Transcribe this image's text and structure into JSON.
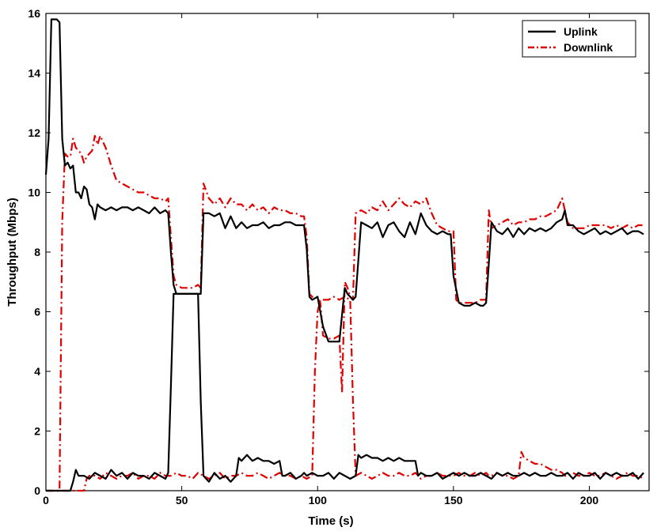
{
  "chart_data": {
    "type": "line",
    "xlabel": "Time (s)",
    "ylabel": "Throughput (Mbps)",
    "xlim": [
      0,
      222
    ],
    "ylim": [
      0,
      16
    ],
    "xticks": [
      0,
      50,
      100,
      150,
      200
    ],
    "yticks": [
      0,
      2,
      4,
      6,
      8,
      10,
      12,
      14,
      16
    ],
    "grid": false,
    "legend_position": "top-right",
    "colors": {
      "uplink": "#000000",
      "downlink": "#e00000"
    },
    "series": [
      {
        "name": "Uplink",
        "style": "solid",
        "flow": "primary",
        "x": [
          0,
          1,
          2,
          4,
          5,
          6,
          7,
          8,
          9,
          10,
          11,
          12,
          13,
          14,
          15,
          16,
          17,
          18,
          19,
          20,
          22,
          24,
          26,
          28,
          30,
          32,
          34,
          36,
          38,
          40,
          42,
          44,
          45,
          46,
          47,
          48,
          50,
          52,
          54,
          56,
          57,
          58,
          60,
          62,
          64,
          66,
          68,
          70,
          72,
          74,
          76,
          78,
          80,
          82,
          84,
          86,
          88,
          90,
          92,
          94,
          95,
          96,
          97,
          98,
          100,
          102,
          104,
          106,
          108,
          109,
          110,
          111,
          112,
          113,
          114,
          116,
          118,
          120,
          122,
          124,
          126,
          128,
          130,
          132,
          134,
          136,
          138,
          140,
          142,
          144,
          146,
          148,
          149,
          150,
          152,
          154,
          156,
          158,
          160,
          161,
          162,
          163,
          164,
          166,
          168,
          170,
          172,
          174,
          176,
          178,
          180,
          182,
          184,
          186,
          188,
          190,
          191,
          192,
          194,
          196,
          198,
          200,
          202,
          204,
          206,
          208,
          210,
          212,
          214,
          216,
          218,
          220
        ],
        "y": [
          10.6,
          11.8,
          15.8,
          15.8,
          15.7,
          11.8,
          10.9,
          11.0,
          10.8,
          10.9,
          10.0,
          10.0,
          9.8,
          10.2,
          10.1,
          9.6,
          9.5,
          9.1,
          9.6,
          9.5,
          9.4,
          9.5,
          9.4,
          9.5,
          9.5,
          9.4,
          9.5,
          9.4,
          9.3,
          9.5,
          9.3,
          9.4,
          9.3,
          8.0,
          6.9,
          6.6,
          6.6,
          6.6,
          6.6,
          6.6,
          6.6,
          9.3,
          9.3,
          9.2,
          9.3,
          8.8,
          9.2,
          8.8,
          9.0,
          8.8,
          8.9,
          8.9,
          9.0,
          8.8,
          8.9,
          8.9,
          9.0,
          9.0,
          8.9,
          8.9,
          8.9,
          8.1,
          6.5,
          6.4,
          6.5,
          5.5,
          5.0,
          5.0,
          5.0,
          5.9,
          6.8,
          6.6,
          6.5,
          6.4,
          6.5,
          9.0,
          8.9,
          8.8,
          9.0,
          8.5,
          8.9,
          9.0,
          8.7,
          8.5,
          9.0,
          8.6,
          9.3,
          8.9,
          8.7,
          8.6,
          8.7,
          8.6,
          8.6,
          7.2,
          6.3,
          6.2,
          6.2,
          6.3,
          6.2,
          6.2,
          6.3,
          7.6,
          9.0,
          8.7,
          8.6,
          8.8,
          8.5,
          8.8,
          8.6,
          8.8,
          8.7,
          8.8,
          8.7,
          8.8,
          9.0,
          9.1,
          9.4,
          8.9,
          8.9,
          8.7,
          8.6,
          8.7,
          8.8,
          8.6,
          8.7,
          8.6,
          8.7,
          8.8,
          8.6,
          8.7,
          8.7,
          8.6
        ]
      },
      {
        "name": "Uplink",
        "style": "solid",
        "flow": "secondary",
        "x": [
          0,
          9,
          10,
          11,
          12,
          14,
          16,
          18,
          20,
          22,
          24,
          26,
          28,
          30,
          32,
          34,
          36,
          38,
          40,
          42,
          44,
          45,
          46,
          47,
          48,
          50,
          52,
          54,
          56,
          57,
          58,
          60,
          62,
          64,
          66,
          68,
          70,
          71,
          72,
          74,
          76,
          78,
          80,
          82,
          84,
          86,
          87,
          88,
          90,
          92,
          94,
          95,
          96,
          98,
          100,
          102,
          104,
          106,
          108,
          110,
          112,
          114,
          115,
          116,
          118,
          120,
          122,
          124,
          126,
          128,
          130,
          132,
          134,
          136,
          137,
          138,
          140,
          142,
          144,
          146,
          148,
          150,
          152,
          154,
          156,
          158,
          160,
          162,
          164,
          166,
          168,
          170,
          172,
          174,
          176,
          178,
          180,
          182,
          184,
          186,
          188,
          190,
          192,
          194,
          196,
          198,
          200,
          202,
          204,
          206,
          208,
          210,
          212,
          214,
          216,
          218,
          220
        ],
        "y": [
          0,
          0,
          0.3,
          0.7,
          0.5,
          0.5,
          0.4,
          0.6,
          0.5,
          0.4,
          0.7,
          0.5,
          0.6,
          0.4,
          0.6,
          0.5,
          0.5,
          0.4,
          0.6,
          0.5,
          0.4,
          0.6,
          3.5,
          6.6,
          6.6,
          6.6,
          6.6,
          6.6,
          6.6,
          3.0,
          0.5,
          0.3,
          0.6,
          0.4,
          0.5,
          0.3,
          0.5,
          1.1,
          1.0,
          1.2,
          1.0,
          1.1,
          1.0,
          1.0,
          0.9,
          1.0,
          0.5,
          0.5,
          0.6,
          0.4,
          0.5,
          0.6,
          0.5,
          0.6,
          0.5,
          0.5,
          0.6,
          0.4,
          0.6,
          0.5,
          0.4,
          0.5,
          1.2,
          1.1,
          1.2,
          1.1,
          1.1,
          1.0,
          1.1,
          1.0,
          1.1,
          1.0,
          1.0,
          1.0,
          0.5,
          0.6,
          0.5,
          0.5,
          0.6,
          0.4,
          0.5,
          0.6,
          0.5,
          0.6,
          0.5,
          0.5,
          0.6,
          0.5,
          0.4,
          0.6,
          0.5,
          0.6,
          0.5,
          0.5,
          0.6,
          0.5,
          0.6,
          0.5,
          0.5,
          0.6,
          0.5,
          0.5,
          0.6,
          0.4,
          0.6,
          0.5,
          0.5,
          0.6,
          0.4,
          0.6,
          0.5,
          0.6,
          0.5,
          0.5,
          0.6,
          0.4,
          0.6
        ]
      },
      {
        "name": "Downlink",
        "style": "dashdot",
        "flow": "primary",
        "x": [
          0,
          4,
          5,
          6,
          7,
          8,
          9,
          10,
          11,
          12,
          13,
          14,
          15,
          16,
          17,
          18,
          19,
          20,
          22,
          24,
          26,
          28,
          30,
          32,
          34,
          36,
          38,
          40,
          42,
          44,
          45,
          46,
          47,
          48,
          50,
          52,
          54,
          56,
          57,
          58,
          60,
          62,
          64,
          66,
          68,
          70,
          72,
          74,
          76,
          78,
          80,
          82,
          84,
          86,
          88,
          90,
          92,
          94,
          95,
          96,
          97,
          98,
          100,
          101,
          102,
          104,
          106,
          108,
          109,
          110,
          111,
          112,
          113,
          114,
          116,
          118,
          120,
          122,
          124,
          126,
          128,
          130,
          132,
          134,
          136,
          138,
          140,
          142,
          144,
          146,
          148,
          149,
          150,
          151,
          152,
          154,
          156,
          158,
          160,
          162,
          163,
          164,
          166,
          168,
          170,
          172,
          174,
          176,
          178,
          180,
          182,
          184,
          186,
          188,
          190,
          192,
          194,
          196,
          198,
          200,
          202,
          204,
          206,
          208,
          210,
          212,
          214,
          216,
          218,
          220
        ],
        "y": [
          0,
          0,
          0,
          9.0,
          11.3,
          11.2,
          11.2,
          11.8,
          11.5,
          11.4,
          11.3,
          11.0,
          11.2,
          11.3,
          11.4,
          11.9,
          11.6,
          11.9,
          11.5,
          10.9,
          10.4,
          10.3,
          10.2,
          10.1,
          10.0,
          10.0,
          9.9,
          9.8,
          9.8,
          9.7,
          9.8,
          8.5,
          7.2,
          6.9,
          6.8,
          6.8,
          6.8,
          6.9,
          6.8,
          10.3,
          9.8,
          9.6,
          9.8,
          9.5,
          9.8,
          9.6,
          9.6,
          9.4,
          9.6,
          9.4,
          9.5,
          9.3,
          9.5,
          9.4,
          9.4,
          9.3,
          9.3,
          9.2,
          9.2,
          8.5,
          6.6,
          6.5,
          6.5,
          6.3,
          5.2,
          5.1,
          5.1,
          5.2,
          3.3,
          7.0,
          6.8,
          6.5,
          6.4,
          9.3,
          9.4,
          9.3,
          9.5,
          9.4,
          9.7,
          9.4,
          9.6,
          9.8,
          9.6,
          9.5,
          9.7,
          9.6,
          9.8,
          9.3,
          8.9,
          8.8,
          8.7,
          8.7,
          8.7,
          6.4,
          6.3,
          6.3,
          6.3,
          6.3,
          6.4,
          6.4,
          9.4,
          8.8,
          8.9,
          9.0,
          9.1,
          8.9,
          9.0,
          9.0,
          9.1,
          9.1,
          9.2,
          9.2,
          9.3,
          9.4,
          9.8,
          9.0,
          8.8,
          8.8,
          8.8,
          8.9,
          8.9,
          8.9,
          8.9,
          8.8,
          8.9,
          8.8,
          8.9,
          8.8,
          8.9,
          8.9
        ]
      },
      {
        "name": "Downlink",
        "style": "dashdot",
        "flow": "secondary",
        "x": [
          0,
          14,
          15,
          16,
          18,
          20,
          22,
          24,
          26,
          28,
          30,
          32,
          34,
          36,
          38,
          40,
          42,
          44,
          46,
          48,
          50,
          52,
          54,
          56,
          58,
          60,
          62,
          64,
          66,
          68,
          70,
          72,
          74,
          76,
          78,
          80,
          82,
          84,
          86,
          88,
          90,
          92,
          94,
          96,
          98,
          99,
          100,
          101,
          102,
          104,
          106,
          108,
          110,
          112,
          113,
          114,
          116,
          118,
          120,
          122,
          124,
          126,
          128,
          130,
          132,
          134,
          136,
          138,
          140,
          142,
          144,
          146,
          148,
          150,
          152,
          154,
          156,
          158,
          160,
          162,
          163,
          164,
          166,
          168,
          170,
          172,
          174,
          175,
          176,
          178,
          180,
          182,
          184,
          186,
          188,
          190,
          191,
          192,
          194,
          196,
          198,
          200,
          202,
          204,
          206,
          208,
          210,
          212,
          214,
          216,
          218,
          220
        ],
        "y": [
          0,
          0,
          0.4,
          0.5,
          0.5,
          0.4,
          0.6,
          0.5,
          0.4,
          0.5,
          0.5,
          0.6,
          0.4,
          0.5,
          0.5,
          0.4,
          0.6,
          0.5,
          0.5,
          0.6,
          0.5,
          0.5,
          0.4,
          0.6,
          0.5,
          0.4,
          0.5,
          0.6,
          0.4,
          0.5,
          0.5,
          0.6,
          0.5,
          0.5,
          0.6,
          0.5,
          0.4,
          0.5,
          0.6,
          0.5,
          0.5,
          0.4,
          0.5,
          0.4,
          0.5,
          4.0,
          6.0,
          6.4,
          6.4,
          6.4,
          6.5,
          6.4,
          6.5,
          6.4,
          3.0,
          0.5,
          0.6,
          0.5,
          0.4,
          0.5,
          0.6,
          0.5,
          0.5,
          0.6,
          0.5,
          0.5,
          0.6,
          0.4,
          0.5,
          0.5,
          0.6,
          0.5,
          0.5,
          0.5,
          0.6,
          0.5,
          0.5,
          0.6,
          0.5,
          0.6,
          0.5,
          0.5,
          0.6,
          0.5,
          0.5,
          0.4,
          0.5,
          1.3,
          1.1,
          1.0,
          0.9,
          0.9,
          0.8,
          0.7,
          0.7,
          0.6,
          0.5,
          0.5,
          0.6,
          0.5,
          0.5,
          0.6,
          0.5,
          0.5,
          0.6,
          0.5,
          0.4,
          0.5,
          0.6,
          0.5,
          0.5,
          0.4
        ]
      }
    ],
    "legend": [
      {
        "label": "Uplink",
        "style": "solid",
        "color": "#000000"
      },
      {
        "label": "Downlink",
        "style": "dashdot",
        "color": "#e00000"
      }
    ]
  }
}
